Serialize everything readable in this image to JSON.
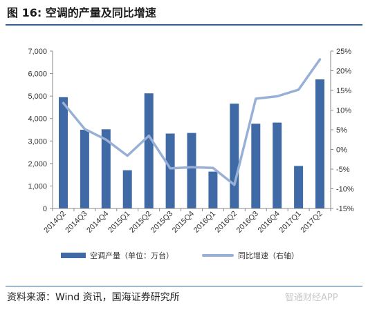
{
  "figure": {
    "title": "图 16:  空调的产量及同比增速",
    "source": "资料来源：Wind 资讯，国海证券研究所",
    "watermark": "智通财经APP"
  },
  "chart_data": {
    "type": "bar",
    "categories": [
      "2014Q2",
      "2014Q3",
      "2014Q4",
      "2015Q1",
      "2015Q2",
      "2015Q3",
      "2015Q4",
      "2016Q1",
      "2016Q2",
      "2016Q3",
      "2016Q4",
      "2017Q1",
      "2017Q2"
    ],
    "series": [
      {
        "name": "空调产量（单位：万台）",
        "type": "bar",
        "axis": "left",
        "color": "#3f6aa6",
        "values": [
          4950,
          3500,
          3520,
          1700,
          5120,
          3330,
          3360,
          1640,
          4660,
          3770,
          3820,
          1890,
          5740
        ]
      },
      {
        "name": "同比增速（右轴）",
        "type": "line",
        "axis": "right",
        "color": "#98afd6",
        "values": [
          11.8,
          5.2,
          2.5,
          -1.6,
          3.5,
          -4.8,
          -4.5,
          -4.7,
          -9.0,
          12.9,
          13.5,
          15.2,
          22.9
        ]
      }
    ],
    "y_left": {
      "min": 0,
      "max": 7000,
      "ticks": [
        "0",
        "1,000",
        "2,000",
        "3,000",
        "4,000",
        "5,000",
        "6,000",
        "7,000"
      ]
    },
    "y_right": {
      "min": -15,
      "max": 25,
      "ticks": [
        "-15%",
        "-10%",
        "-5%",
        "0%",
        "5%",
        "10%",
        "15%",
        "20%",
        "25%"
      ]
    },
    "grid": false,
    "legend_position": "bottom"
  }
}
